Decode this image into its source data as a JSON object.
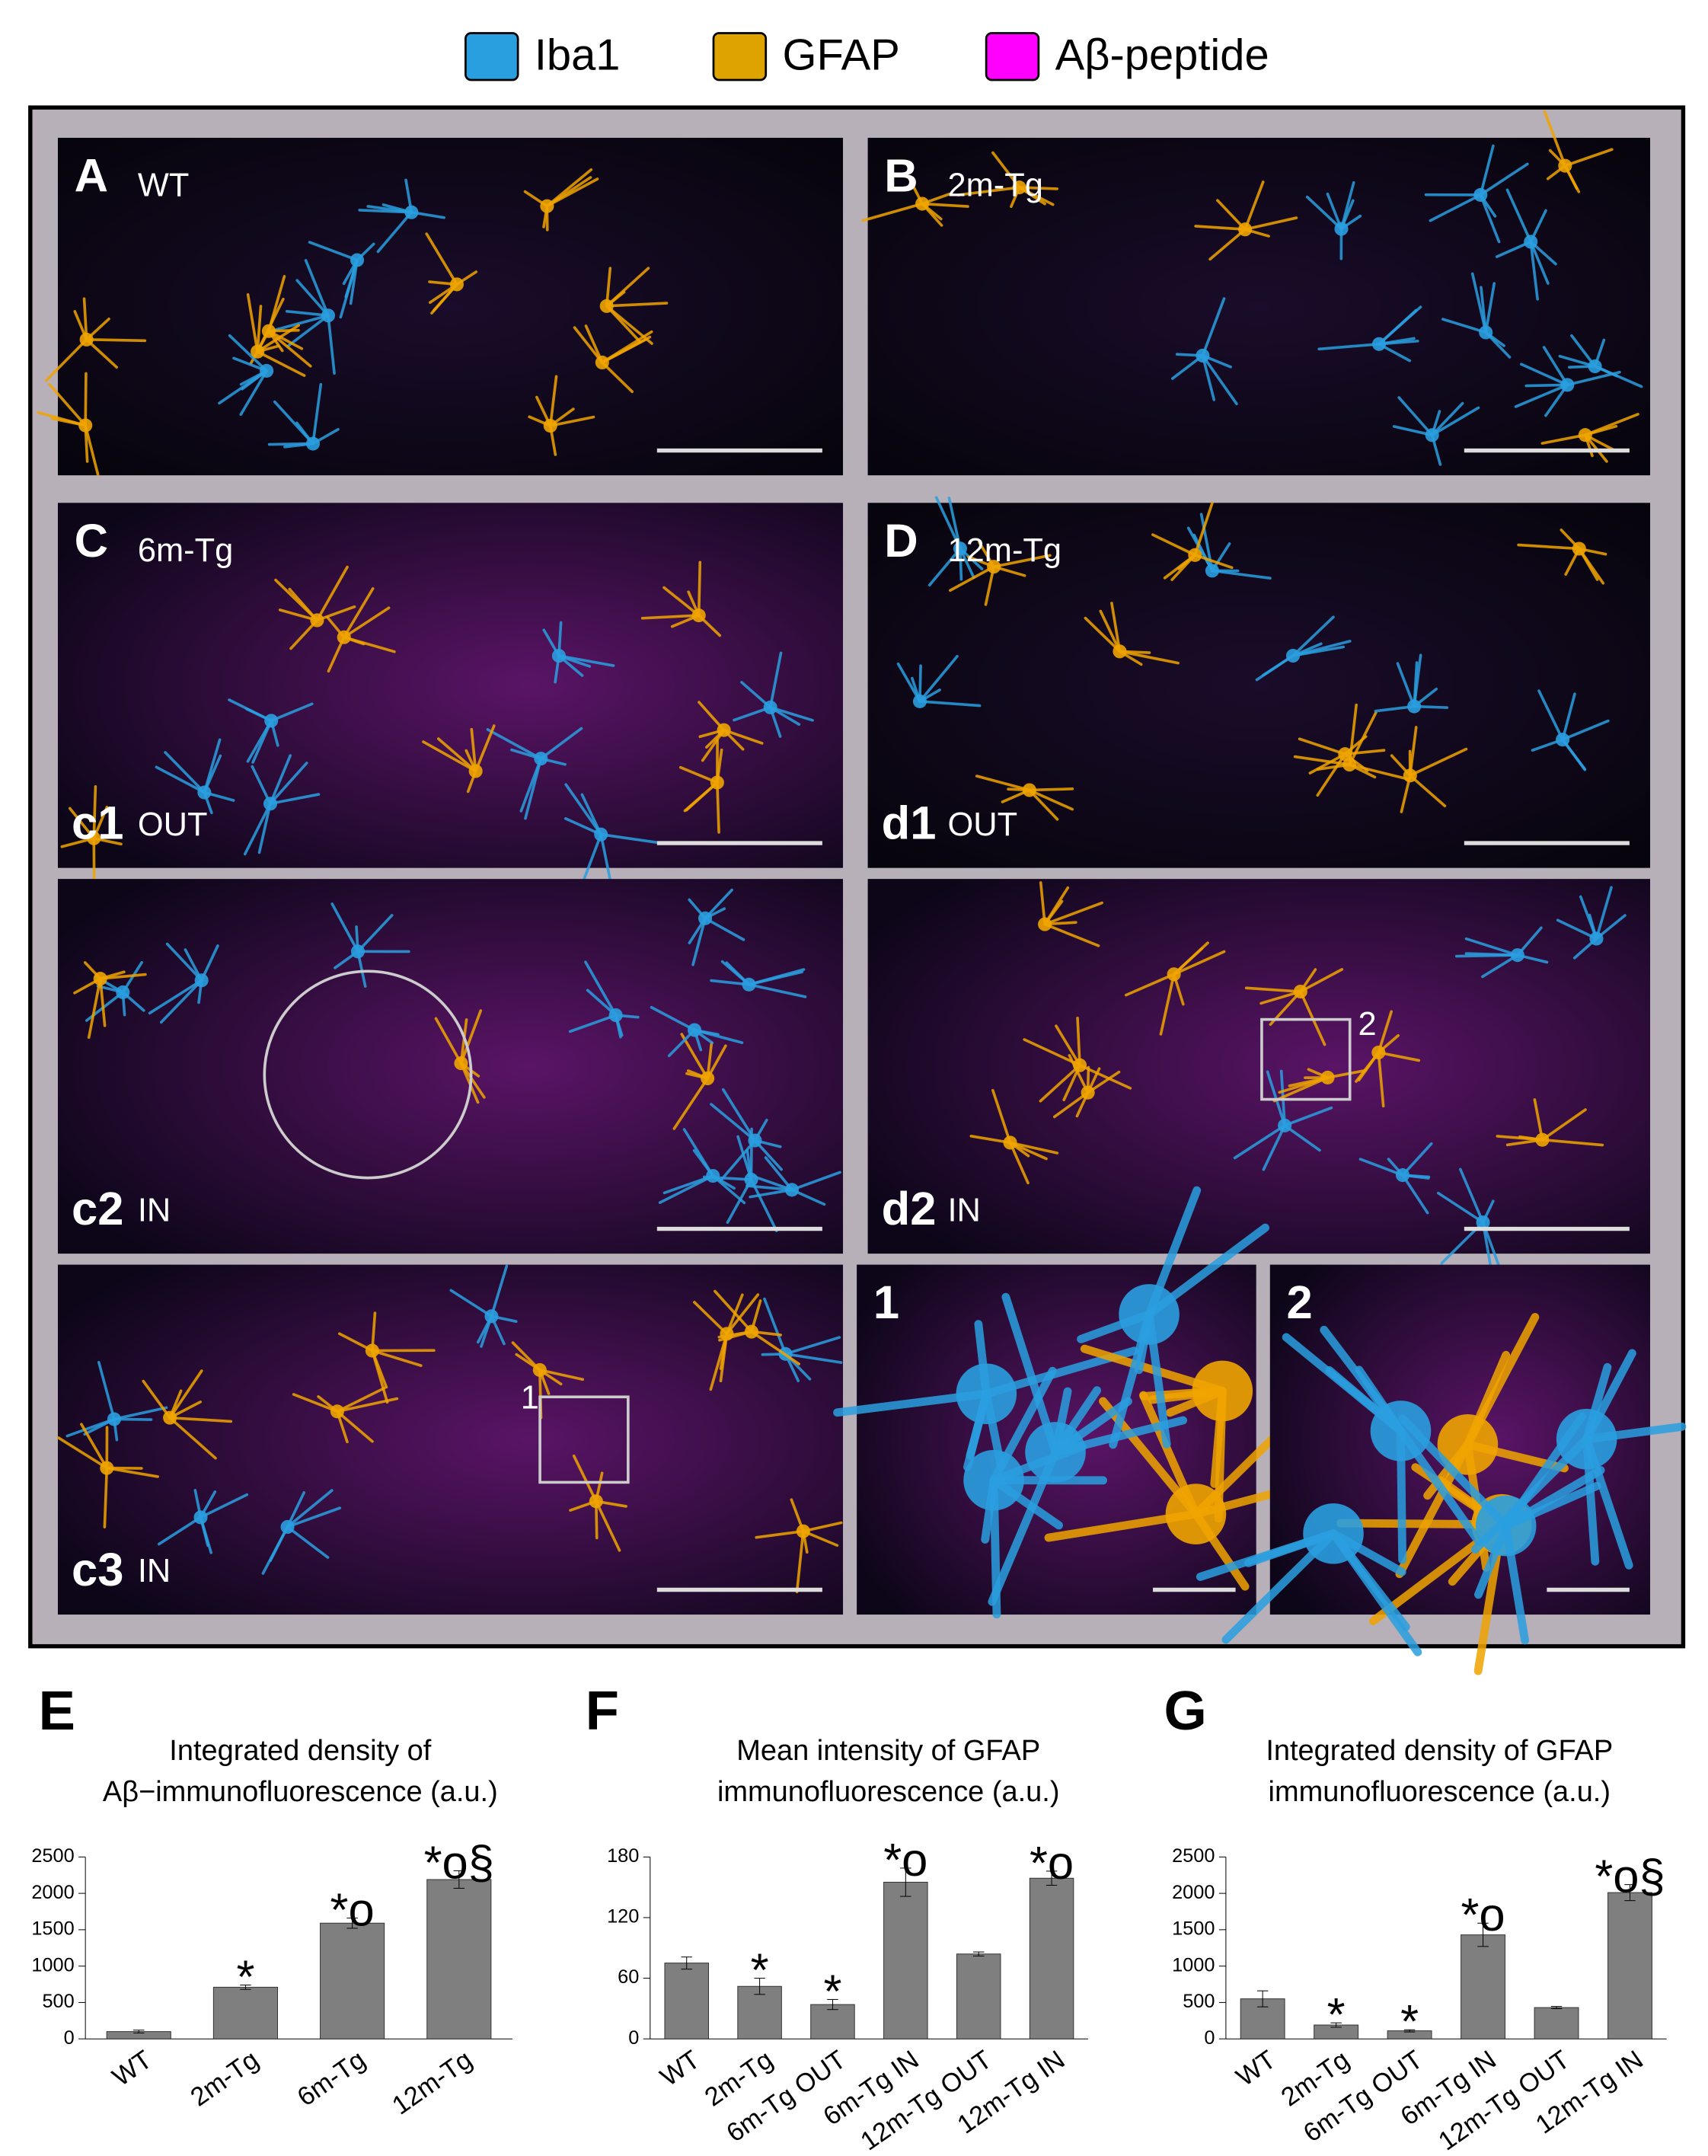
{
  "legend": [
    "Iba1",
    "GFAP",
    "Aβ-peptide"
  ],
  "legend_colors": [
    "#2a9fe0",
    "#dfa300",
    "#ff00ff"
  ],
  "panels": [
    {
      "letter": "A",
      "label": "WT"
    },
    {
      "letter": "B",
      "label": "2m-Tg"
    },
    {
      "letter": "C",
      "label": "6m-Tg",
      "sub": "c1",
      "sublabel": "OUT"
    },
    {
      "letter": "D",
      "label": "12m-Tg",
      "sub": "d1",
      "sublabel": "OUT"
    },
    {
      "sub": "c2",
      "sublabel": "IN"
    },
    {
      "sub": "d2",
      "sublabel": "IN",
      "box": "2"
    },
    {
      "sub": "c3",
      "sublabel": "IN",
      "box": "1"
    },
    {
      "letter": "1"
    },
    {
      "letter": "2"
    }
  ],
  "chart_data": [
    {
      "type": "bar",
      "panel": "E",
      "title": [
        "Integrated density of",
        "Aβ−immunofluorescence (a.u.)"
      ],
      "categories": [
        "WT",
        "2m-Tg",
        "6m-Tg",
        "12m-Tg"
      ],
      "values": [
        100,
        710,
        1590,
        2190
      ],
      "errors": [
        20,
        30,
        70,
        120
      ],
      "significance": [
        null,
        "*",
        "*o",
        "*o§"
      ],
      "ylim": [
        0,
        2500
      ],
      "yticks": [
        0,
        500,
        1000,
        1500,
        2000,
        2500
      ],
      "color": "#7f7f7f"
    },
    {
      "type": "bar",
      "panel": "F",
      "title": [
        "Mean intensity of GFAP",
        "immunofluorescence (a.u.)"
      ],
      "categories": [
        "WT",
        "2m-Tg",
        "6m-Tg OUT",
        "6m-Tg IN",
        "12m-Tg OUT",
        "12m-Tg IN"
      ],
      "values": [
        75,
        52,
        34,
        155,
        84,
        159
      ],
      "errors": [
        6,
        8,
        5,
        14,
        2,
        7
      ],
      "significance": [
        null,
        "*",
        "*",
        "*o",
        null,
        "*o"
      ],
      "ylim": [
        0,
        180
      ],
      "yticks": [
        0,
        60,
        120,
        180
      ],
      "color": "#7f7f7f"
    },
    {
      "type": "bar",
      "panel": "G",
      "title": [
        "Integrated density of GFAP",
        "immunofluorescence (a.u.)"
      ],
      "categories": [
        "WT",
        "2m-Tg",
        "6m-Tg OUT",
        "6m-Tg IN",
        "12m-Tg OUT",
        "12m-Tg IN"
      ],
      "values": [
        550,
        190,
        110,
        1430,
        430,
        2010
      ],
      "errors": [
        110,
        30,
        15,
        160,
        15,
        110
      ],
      "significance": [
        null,
        "*",
        "*",
        "*o",
        null,
        "*o§"
      ],
      "ylim": [
        0,
        2500
      ],
      "yticks": [
        0,
        500,
        1000,
        1500,
        2000,
        2500
      ],
      "color": "#7f7f7f"
    }
  ]
}
